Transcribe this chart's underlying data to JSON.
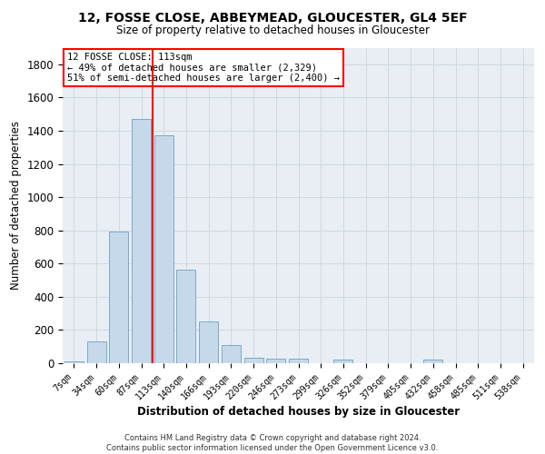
{
  "title_line1": "12, FOSSE CLOSE, ABBEYMEAD, GLOUCESTER, GL4 5EF",
  "title_line2": "Size of property relative to detached houses in Gloucester",
  "xlabel": "Distribution of detached houses by size in Gloucester",
  "ylabel": "Number of detached properties",
  "bar_labels": [
    "7sqm",
    "34sqm",
    "60sqm",
    "87sqm",
    "113sqm",
    "140sqm",
    "166sqm",
    "193sqm",
    "220sqm",
    "246sqm",
    "273sqm",
    "299sqm",
    "326sqm",
    "352sqm",
    "379sqm",
    "405sqm",
    "432sqm",
    "458sqm",
    "485sqm",
    "511sqm",
    "538sqm"
  ],
  "bar_values": [
    10,
    130,
    795,
    1470,
    1370,
    565,
    250,
    110,
    35,
    30,
    30,
    0,
    20,
    0,
    0,
    0,
    20,
    0,
    0,
    0,
    0
  ],
  "bar_color": "#c6d9ea",
  "bar_edge_color": "#7aaac8",
  "vline_position": 4.0,
  "vline_color": "red",
  "annotation_text": "12 FOSSE CLOSE: 113sqm\n← 49% of detached houses are smaller (2,329)\n51% of semi-detached houses are larger (2,400) →",
  "ylim_max": 1900,
  "yticks": [
    0,
    200,
    400,
    600,
    800,
    1000,
    1200,
    1400,
    1600,
    1800
  ],
  "grid_color": "#d0d8e0",
  "background_color": "#e8eef4",
  "footer_line1": "Contains HM Land Registry data © Crown copyright and database right 2024.",
  "footer_line2": "Contains public sector information licensed under the Open Government Licence v3.0."
}
